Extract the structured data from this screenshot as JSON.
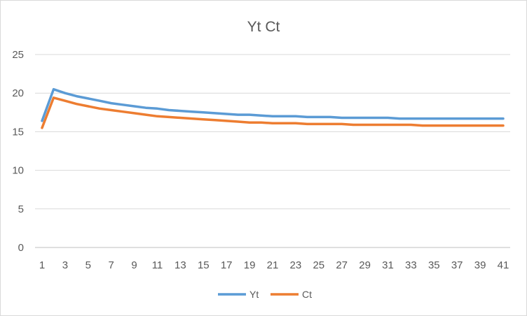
{
  "chart_data": {
    "type": "line",
    "title": "Yt Ct",
    "xlabel": "",
    "ylabel": "",
    "ylim": [
      0,
      25
    ],
    "yticks": [
      "0",
      "5",
      "10",
      "15",
      "20",
      "25"
    ],
    "xticks": [
      "1",
      "3",
      "5",
      "7",
      "9",
      "11",
      "13",
      "15",
      "17",
      "19",
      "21",
      "23",
      "25",
      "27",
      "29",
      "31",
      "33",
      "35",
      "37",
      "39",
      "41"
    ],
    "x": [
      1,
      2,
      3,
      4,
      5,
      6,
      7,
      8,
      9,
      10,
      11,
      12,
      13,
      14,
      15,
      16,
      17,
      18,
      19,
      20,
      21,
      22,
      23,
      24,
      25,
      26,
      27,
      28,
      29,
      30,
      31,
      32,
      33,
      34,
      35,
      36,
      37,
      38,
      39,
      40,
      41
    ],
    "grid": true,
    "legend_position": "bottom",
    "series": [
      {
        "name": "Yt",
        "color": "#5b9bd5",
        "values": [
          16.4,
          20.5,
          20.0,
          19.6,
          19.3,
          19.0,
          18.7,
          18.5,
          18.3,
          18.1,
          18.0,
          17.8,
          17.7,
          17.6,
          17.5,
          17.4,
          17.3,
          17.2,
          17.2,
          17.1,
          17.0,
          17.0,
          17.0,
          16.9,
          16.9,
          16.9,
          16.8,
          16.8,
          16.8,
          16.8,
          16.8,
          16.7,
          16.7,
          16.7,
          16.7,
          16.7,
          16.7,
          16.7,
          16.7,
          16.7,
          16.7
        ]
      },
      {
        "name": "Ct",
        "color": "#ed7d31",
        "values": [
          15.5,
          19.4,
          19.0,
          18.6,
          18.3,
          18.0,
          17.8,
          17.6,
          17.4,
          17.2,
          17.0,
          16.9,
          16.8,
          16.7,
          16.6,
          16.5,
          16.4,
          16.3,
          16.2,
          16.2,
          16.1,
          16.1,
          16.1,
          16.0,
          16.0,
          16.0,
          16.0,
          15.9,
          15.9,
          15.9,
          15.9,
          15.9,
          15.9,
          15.8,
          15.8,
          15.8,
          15.8,
          15.8,
          15.8,
          15.8,
          15.8
        ]
      }
    ]
  }
}
